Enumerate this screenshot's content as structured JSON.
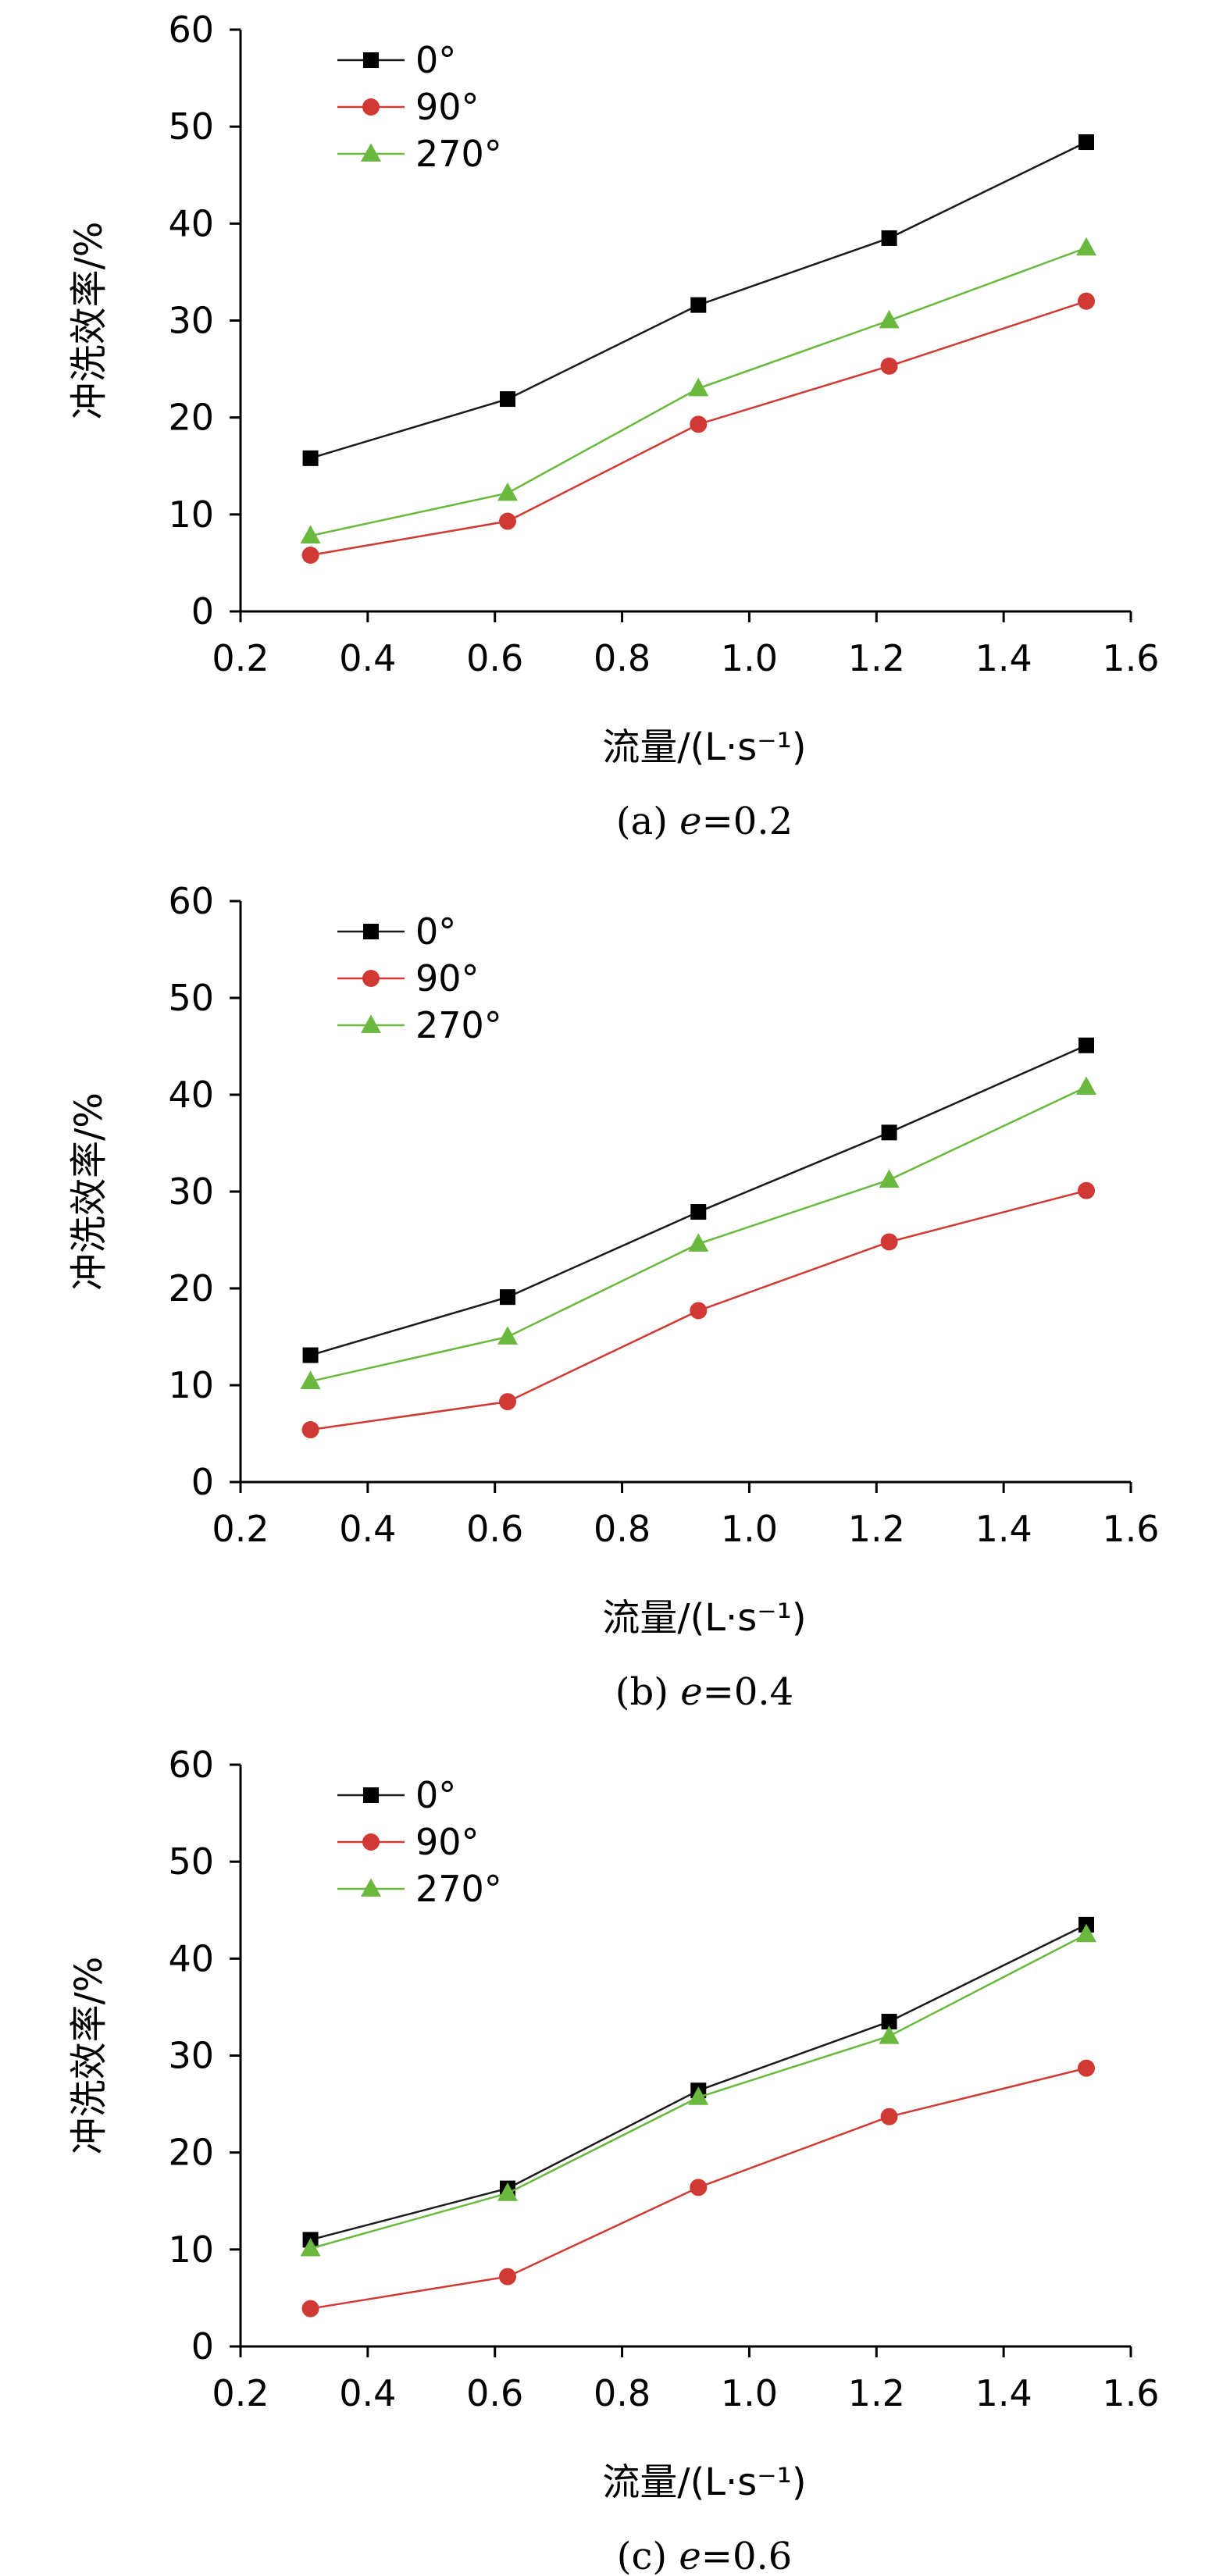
{
  "colors": {
    "series_0": "#000000",
    "series_90": "#d13a34",
    "series_270": "#6ab83d",
    "line_0": "#1a1a1a",
    "line_90": "#d13a34",
    "line_270": "#6ab83d"
  },
  "chart_data": [
    {
      "type": "line",
      "caption": "(a) e=0.2",
      "caption_prefix": "(a) ",
      "caption_var": "e",
      "caption_suffix": "=0.2",
      "xlabel": "流量/(L·s⁻¹)",
      "ylabel": "冲洗效率/%",
      "xlim": [
        0.2,
        1.6
      ],
      "ylim": [
        0,
        60
      ],
      "xticks": [
        "0.2",
        "0.4",
        "0.6",
        "0.8",
        "1.0",
        "1.2",
        "1.4",
        "1.6"
      ],
      "yticks": [
        "0",
        "10",
        "20",
        "30",
        "40",
        "50",
        "60"
      ],
      "legend_position": "top-left",
      "x": [
        0.31,
        0.62,
        0.92,
        1.22,
        1.53
      ],
      "series": [
        {
          "name": "0°",
          "marker": "square",
          "values": [
            15.8,
            21.9,
            31.6,
            38.5,
            48.4
          ]
        },
        {
          "name": "90°",
          "marker": "circle",
          "values": [
            5.8,
            9.3,
            19.3,
            25.3,
            32.0
          ]
        },
        {
          "name": "270°",
          "marker": "triangle",
          "values": [
            7.8,
            12.2,
            23.0,
            30.0,
            37.5
          ]
        }
      ]
    },
    {
      "type": "line",
      "caption": "(b) e=0.4",
      "caption_prefix": "(b) ",
      "caption_var": "e",
      "caption_suffix": "=0.4",
      "xlabel": "流量/(L·s⁻¹)",
      "ylabel": "冲洗效率/%",
      "xlim": [
        0.2,
        1.6
      ],
      "ylim": [
        0,
        60
      ],
      "xticks": [
        "0.2",
        "0.4",
        "0.6",
        "0.8",
        "1.0",
        "1.2",
        "1.4",
        "1.6"
      ],
      "yticks": [
        "0",
        "10",
        "20",
        "30",
        "40",
        "50",
        "60"
      ],
      "legend_position": "top-left",
      "x": [
        0.31,
        0.62,
        0.92,
        1.22,
        1.53
      ],
      "series": [
        {
          "name": "0°",
          "marker": "square",
          "values": [
            13.1,
            19.1,
            27.9,
            36.1,
            45.1
          ]
        },
        {
          "name": "90°",
          "marker": "circle",
          "values": [
            5.4,
            8.3,
            17.7,
            24.8,
            30.1
          ]
        },
        {
          "name": "270°",
          "marker": "triangle",
          "values": [
            10.4,
            15.0,
            24.6,
            31.2,
            40.8
          ]
        }
      ]
    },
    {
      "type": "line",
      "caption": "(c) e=0.6",
      "caption_prefix": "(c) ",
      "caption_var": "e",
      "caption_suffix": "=0.6",
      "xlabel": "流量/(L·s⁻¹)",
      "ylabel": "冲洗效率/%",
      "xlim": [
        0.2,
        1.6
      ],
      "ylim": [
        0,
        60
      ],
      "xticks": [
        "0.2",
        "0.4",
        "0.6",
        "0.8",
        "1.0",
        "1.2",
        "1.4",
        "1.6"
      ],
      "yticks": [
        "0",
        "10",
        "20",
        "30",
        "40",
        "50",
        "60"
      ],
      "legend_position": "top-left",
      "x": [
        0.31,
        0.62,
        0.92,
        1.22,
        1.53
      ],
      "series": [
        {
          "name": "0°",
          "marker": "square",
          "values": [
            11.0,
            16.3,
            26.4,
            33.5,
            43.5
          ]
        },
        {
          "name": "90°",
          "marker": "circle",
          "values": [
            3.9,
            7.2,
            16.4,
            23.7,
            28.7
          ]
        },
        {
          "name": "270°",
          "marker": "triangle",
          "values": [
            10.1,
            15.8,
            25.7,
            32.0,
            42.5
          ]
        }
      ]
    }
  ]
}
